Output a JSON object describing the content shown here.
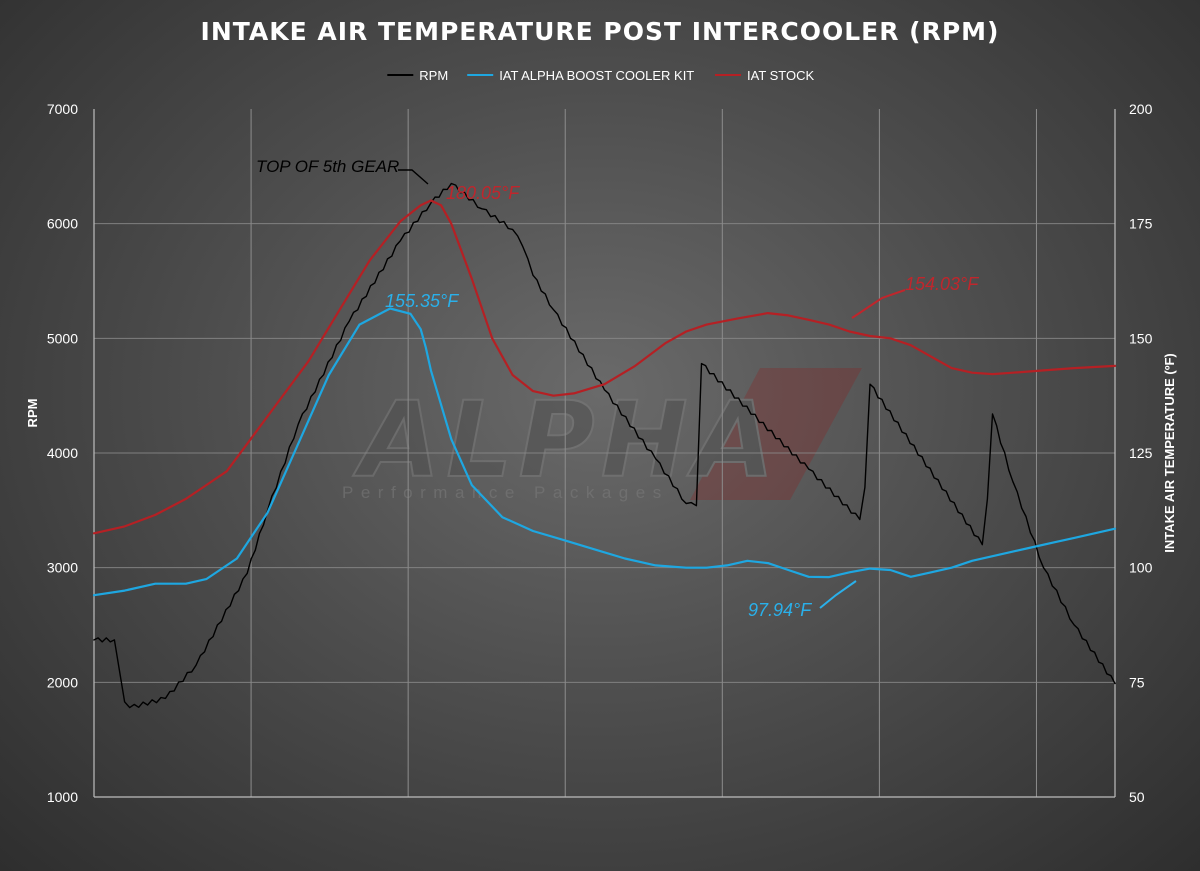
{
  "chart_data": {
    "type": "line",
    "title": "INTAKE AIR TEMPERATURE POST INTERCOOLER (RPM)",
    "ylabel_left": "RPM",
    "ylabel_right": "INTAKE AIR TEMPERATURE (ºF)",
    "ylim_left": [
      1000,
      7000
    ],
    "ylim_right": [
      50,
      200
    ],
    "yticks_left": [
      "1000",
      "2000",
      "3000",
      "4000",
      "5000",
      "6000",
      "7000"
    ],
    "yticks_right": [
      "50",
      "75",
      "100",
      "125",
      "150",
      "175",
      "200"
    ],
    "xlim": [
      0,
      100
    ],
    "grid": "vertical",
    "legend_position": "top-center",
    "series": [
      {
        "name": "RPM",
        "axis": "left",
        "color": "#000000",
        "x": [
          0,
          2,
          2.5,
          3,
          3.5,
          7,
          10,
          15,
          17,
          20,
          25,
          30,
          33,
          35,
          38,
          41,
          42,
          43,
          45,
          50,
          55,
          58,
          59,
          59.5,
          70,
          75,
          75.5,
          76,
          87,
          87.5,
          88,
          90,
          93,
          96,
          100
        ],
        "y": [
          2370,
          2370,
          2100,
          1830,
          1780,
          1860,
          2150,
          2950,
          3500,
          4250,
          5150,
          5850,
          6180,
          6350,
          6130,
          5950,
          5800,
          5550,
          5250,
          4550,
          3950,
          3560,
          3540,
          4780,
          3860,
          3420,
          3700,
          4600,
          3200,
          3600,
          4340,
          3750,
          3000,
          2500,
          1990
        ]
      },
      {
        "name": "IAT ALPHA BOOST COOLER KIT",
        "axis": "right",
        "color": "#1ea7e1",
        "x": [
          0,
          3,
          6,
          9,
          11,
          14,
          17,
          20,
          23,
          26,
          29,
          31,
          32,
          32.5,
          33,
          35,
          37,
          40,
          43,
          46,
          49,
          52,
          55,
          58,
          60,
          62,
          64,
          66,
          68,
          70,
          72,
          74,
          76,
          78,
          80,
          82,
          84,
          86,
          88,
          90,
          92,
          94,
          96,
          98,
          100
        ],
        "y": [
          94,
          95,
          96.5,
          96.5,
          97.5,
          102,
          112,
          127,
          142,
          153,
          156.5,
          155.35,
          152,
          148,
          143,
          128,
          118,
          111,
          108,
          106,
          104,
          102,
          100.5,
          100,
          100,
          100.5,
          101.5,
          101,
          99.5,
          98,
          97.94,
          99,
          99.8,
          99.5,
          98,
          99,
          100,
          101.5,
          102.5,
          103.5,
          104.5,
          105.5,
          106.5,
          107.5,
          108.5
        ]
      },
      {
        "name": "IAT STOCK",
        "axis": "right",
        "color": "#b52024",
        "x": [
          0,
          3,
          6,
          9,
          11,
          13,
          15,
          18,
          21,
          24,
          27,
          30,
          32,
          33,
          34,
          35,
          37,
          39,
          41,
          43,
          45,
          47,
          50,
          53,
          56,
          58,
          60,
          63,
          66,
          68,
          70,
          72,
          74,
          76,
          78,
          80,
          82,
          84,
          86,
          88,
          90,
          93,
          96,
          100
        ],
        "y": [
          107.5,
          109,
          111.5,
          115,
          118,
          121,
          127,
          136,
          145,
          156,
          167,
          175.5,
          179,
          180.05,
          179,
          175,
          163,
          150,
          142,
          138.5,
          137.5,
          138,
          140,
          144,
          149,
          151.5,
          153,
          154.3,
          155.5,
          155,
          154.03,
          153,
          151.5,
          150.5,
          150,
          148.5,
          146,
          143.5,
          142.5,
          142.2,
          142.5,
          143,
          143.5,
          144
        ]
      }
    ],
    "annotations": [
      {
        "text": "TOP OF 5th GEAR",
        "color": "#000000"
      },
      {
        "text": "180.05°F",
        "color": "#c0262c"
      },
      {
        "text": "155.35°F",
        "color": "#2ab0ea"
      },
      {
        "text": "154.03°F",
        "color": "#c0262c"
      },
      {
        "text": "97.94°F",
        "color": "#2ab0ea"
      }
    ],
    "watermark": {
      "logo": "ALPHA",
      "tagline": "Performance Packages"
    }
  }
}
